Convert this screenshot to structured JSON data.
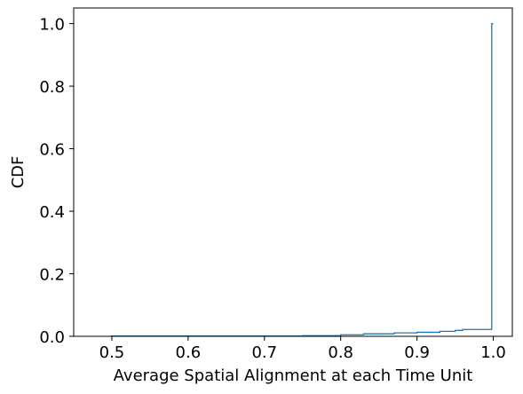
{
  "chart_data": {
    "type": "line",
    "drawstyle": "steps-post",
    "title": "",
    "xlabel": "Average Spatial Alignment at each Time Unit",
    "ylabel": "CDF",
    "xlim": [
      0.45,
      1.025
    ],
    "ylim": [
      0.0,
      1.05
    ],
    "xticks": [
      0.5,
      0.6,
      0.7,
      0.8,
      0.9,
      1.0
    ],
    "xtick_labels": [
      "0.5",
      "0.6",
      "0.7",
      "0.8",
      "0.9",
      "1.0"
    ],
    "yticks": [
      0.0,
      0.2,
      0.4,
      0.6,
      0.8,
      1.0
    ],
    "ytick_labels": [
      "0.0",
      "0.2",
      "0.4",
      "0.6",
      "0.8",
      "1.0"
    ],
    "grid": false,
    "legend": "none",
    "colors": {
      "series": "#1f77b4",
      "axes": "#000000"
    },
    "series": [
      {
        "x": [
          0.498,
          0.5,
          0.75,
          0.8,
          0.83,
          0.87,
          0.9,
          0.93,
          0.95,
          0.96,
          0.998,
          1.0
        ],
        "y": [
          0.0,
          0.001,
          0.002,
          0.005,
          0.008,
          0.011,
          0.013,
          0.016,
          0.019,
          0.022,
          1.0,
          1.0
        ]
      }
    ]
  }
}
